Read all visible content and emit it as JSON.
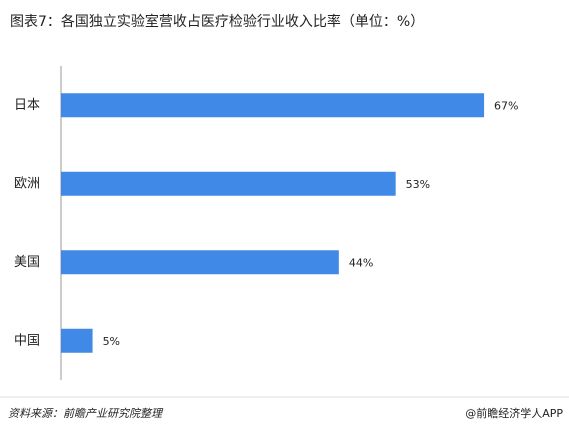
{
  "chart_data": {
    "type": "barh",
    "title": "图表7：各国独立实验室营收占医疗检验行业收入比率（单位：%）",
    "categories": [
      "日本",
      "欧洲",
      "美国",
      "中国"
    ],
    "values": [
      67,
      53,
      44,
      5
    ],
    "value_labels": [
      "67%",
      "53%",
      "44%",
      "5%"
    ],
    "color": "#4189e6",
    "xlim": [
      0,
      70
    ],
    "source": "资料来源：前瞻产业研究院整理",
    "credit": "@前瞻经济学人APP"
  }
}
